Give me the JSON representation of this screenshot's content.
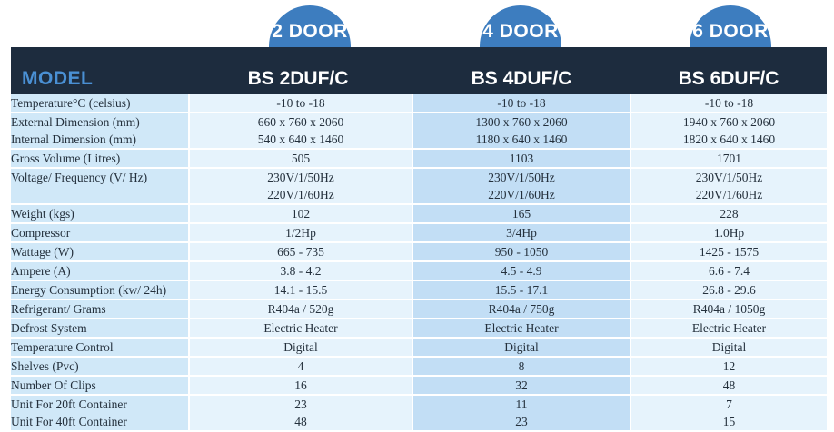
{
  "tabs": [
    "2 DOOR",
    "4 DOOR",
    "6 DOOR"
  ],
  "header": {
    "model_label": "MODEL",
    "models": [
      "BS 2DUF/C",
      "BS 4DUF/C",
      "BS 6DUF/C"
    ]
  },
  "rows": [
    {
      "label": [
        "Temperature°C (celsius)"
      ],
      "values": [
        [
          "-10 to -18"
        ],
        [
          "-10 to -18"
        ],
        [
          "-10 to -18"
        ]
      ]
    },
    {
      "label": [
        "External Dimension (mm)",
        "Internal Dimension (mm)"
      ],
      "values": [
        [
          "660 x 760 x 2060",
          "540 x 640 x 1460"
        ],
        [
          "1300 x 760 x 2060",
          "1180 x 640 x 1460"
        ],
        [
          "1940 x 760 x 2060",
          "1820 x 640 x 1460"
        ]
      ]
    },
    {
      "label": [
        "Gross Volume (Litres)"
      ],
      "values": [
        [
          "505"
        ],
        [
          "1103"
        ],
        [
          "1701"
        ]
      ]
    },
    {
      "label": [
        "Voltage/ Frequency (V/ Hz)",
        ""
      ],
      "values": [
        [
          "230V/1/50Hz",
          "220V/1/60Hz"
        ],
        [
          "230V/1/50Hz",
          "220V/1/60Hz"
        ],
        [
          "230V/1/50Hz",
          "220V/1/60Hz"
        ]
      ]
    },
    {
      "label": [
        "Weight (kgs)"
      ],
      "values": [
        [
          "102"
        ],
        [
          "165"
        ],
        [
          "228"
        ]
      ]
    },
    {
      "label": [
        "Compressor"
      ],
      "values": [
        [
          "1/2Hp"
        ],
        [
          "3/4Hp"
        ],
        [
          "1.0Hp"
        ]
      ]
    },
    {
      "label": [
        "Wattage (W)"
      ],
      "values": [
        [
          "665 - 735"
        ],
        [
          "950 - 1050"
        ],
        [
          "1425 - 1575"
        ]
      ]
    },
    {
      "label": [
        "Ampere (A)"
      ],
      "values": [
        [
          "3.8 - 4.2"
        ],
        [
          "4.5 - 4.9"
        ],
        [
          "6.6 - 7.4"
        ]
      ]
    },
    {
      "label": [
        "Energy Consumption (kw/ 24h)"
      ],
      "values": [
        [
          "14.1 - 15.5"
        ],
        [
          "15.5 - 17.1"
        ],
        [
          "26.8 - 29.6"
        ]
      ]
    },
    {
      "label": [
        "Refrigerant/ Grams"
      ],
      "values": [
        [
          "R404a / 520g"
        ],
        [
          "R404a / 750g"
        ],
        [
          "R404a / 1050g"
        ]
      ]
    },
    {
      "label": [
        "Defrost System"
      ],
      "values": [
        [
          "Electric Heater"
        ],
        [
          "Electric Heater"
        ],
        [
          "Electric Heater"
        ]
      ]
    },
    {
      "label": [
        "Temperature Control"
      ],
      "values": [
        [
          "Digital"
        ],
        [
          "Digital"
        ],
        [
          "Digital"
        ]
      ]
    },
    {
      "label": [
        "Shelves (Pvc)"
      ],
      "values": [
        [
          "4"
        ],
        [
          "8"
        ],
        [
          "12"
        ]
      ]
    },
    {
      "label": [
        "Number Of Clips"
      ],
      "values": [
        [
          "16"
        ],
        [
          "32"
        ],
        [
          "48"
        ]
      ]
    },
    {
      "label": [
        "Unit For 20ft Container",
        "Unit For 40ft Container"
      ],
      "values": [
        [
          "23",
          "48"
        ],
        [
          "11",
          "23"
        ],
        [
          "7",
          "15"
        ]
      ]
    }
  ]
}
